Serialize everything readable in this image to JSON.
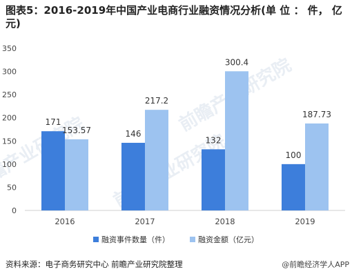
{
  "title": "图表5：2016-2019年中国产业电商行业融资情况分析(单 位 ： 件， 亿元)",
  "source": "资料来源：电子商务研究中心 前瞻产业研究院整理",
  "brand": "@前瞻经济学人APP",
  "watermark": "前瞻产业研究院",
  "colors": {
    "series1": "#3d7edb",
    "series2": "#9dc3f0",
    "axis": "#cfcfcf"
  },
  "chart_data": {
    "type": "bar",
    "categories": [
      "2016",
      "2017",
      "2018",
      "2019"
    ],
    "series": [
      {
        "name": "融资事件数量（件）",
        "values": [
          171,
          146,
          132,
          100
        ],
        "labels": [
          "171",
          "146",
          "132",
          "100"
        ]
      },
      {
        "name": "融资金额（亿元）",
        "values": [
          153.57,
          217.2,
          300.4,
          187.73
        ],
        "labels": [
          "153.57",
          "217.2",
          "300.4",
          "187.73"
        ]
      }
    ],
    "ylim": [
      0,
      350
    ],
    "yticks": [
      0,
      50,
      100,
      150,
      200,
      250,
      300,
      350
    ],
    "grid": false,
    "legend": "bottom"
  }
}
